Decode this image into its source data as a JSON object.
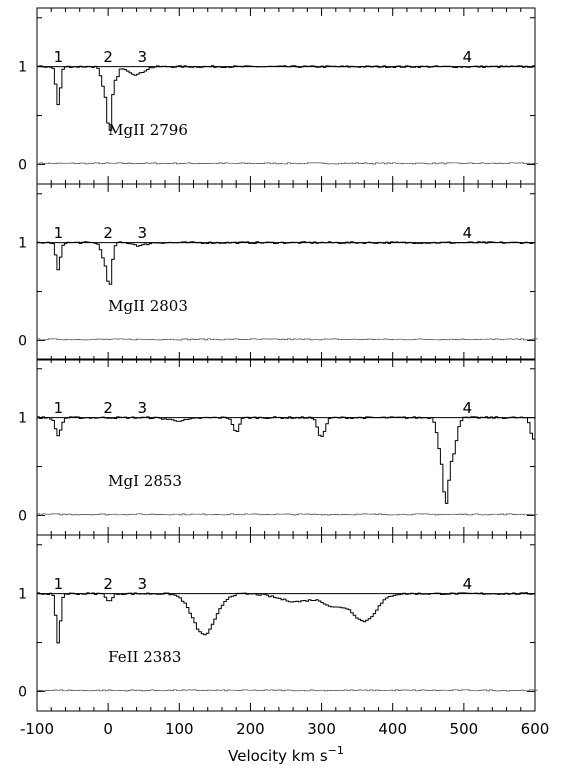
{
  "chart_data": {
    "type": "line",
    "style": "step",
    "xlabel": "Velocity km s",
    "xlabel_superscript": "−1",
    "xlim": [
      -100,
      600
    ],
    "xticks": [
      -100,
      0,
      100,
      200,
      300,
      400,
      500,
      600
    ],
    "ylim": [
      -0.2,
      1.6
    ],
    "yticks": [
      0,
      1
    ],
    "component_labels": [
      {
        "text": "1",
        "x": -70
      },
      {
        "text": "2",
        "x": 0
      },
      {
        "text": "3",
        "x": 48
      },
      {
        "text": "4",
        "x": 505
      }
    ],
    "panels": [
      {
        "name": "MgII 2796",
        "continuum": 1,
        "label_pos": {
          "x": 0,
          "y": 0.3
        },
        "absorption": [
          {
            "center": -70,
            "depth": 0.39,
            "width": 3
          },
          {
            "center": 2,
            "depth": 0.68,
            "width": 3.5
          },
          {
            "center": -6,
            "depth": 0.2,
            "width": 4
          },
          {
            "center": 12,
            "depth": 0.12,
            "width": 3
          },
          {
            "center": 40,
            "depth": 0.08,
            "width": 10
          }
        ]
      },
      {
        "name": "MgII 2803",
        "continuum": 1,
        "label_pos": {
          "x": 0,
          "y": 0.3
        },
        "absorption": [
          {
            "center": -70,
            "depth": 0.28,
            "width": 3
          },
          {
            "center": 2,
            "depth": 0.45,
            "width": 3.5
          },
          {
            "center": -6,
            "depth": 0.15,
            "width": 4
          },
          {
            "center": 45,
            "depth": 0.03,
            "width": 8
          }
        ]
      },
      {
        "name": "MgI 2853",
        "continuum": 1,
        "label_pos": {
          "x": 0,
          "y": 0.3
        },
        "absorption": [
          {
            "center": -70,
            "depth": 0.18,
            "width": 4
          },
          {
            "center": 100,
            "depth": 0.03,
            "width": 15
          },
          {
            "center": 180,
            "depth": 0.15,
            "width": 4
          },
          {
            "center": 300,
            "depth": 0.2,
            "width": 5
          },
          {
            "center": 475,
            "depth": 0.88,
            "width": 4.5
          },
          {
            "center": 466,
            "depth": 0.25,
            "width": 4
          },
          {
            "center": 485,
            "depth": 0.35,
            "width": 5
          },
          {
            "center": 598,
            "depth": 0.22,
            "width": 4
          }
        ]
      },
      {
        "name": "FeII 2383",
        "continuum": 1,
        "label_pos": {
          "x": 0,
          "y": 0.3
        },
        "absorption": [
          {
            "center": -70,
            "depth": 0.5,
            "width": 3
          },
          {
            "center": 2,
            "depth": 0.08,
            "width": 4
          },
          {
            "center": 135,
            "depth": 0.42,
            "width": 16
          },
          {
            "center": 265,
            "depth": 0.08,
            "width": 25
          },
          {
            "center": 318,
            "depth": 0.12,
            "width": 14
          },
          {
            "center": 360,
            "depth": 0.28,
            "width": 17
          }
        ]
      }
    ]
  }
}
